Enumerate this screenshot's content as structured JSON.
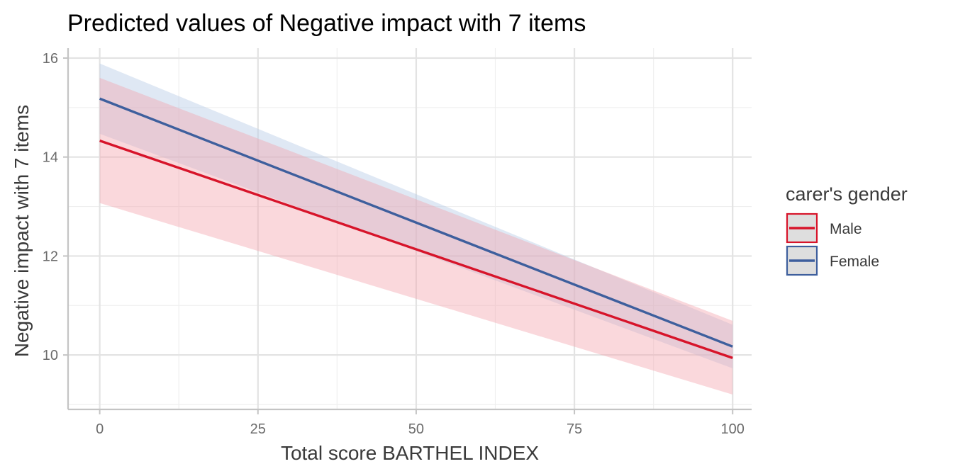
{
  "chart_data": {
    "type": "line",
    "title": "Predicted values of Negative impact with 7 items",
    "xlabel": "Total score BARTHEL INDEX",
    "ylabel": "Negative impact with 7 items",
    "xlim": [
      -5,
      103
    ],
    "ylim": [
      8.9,
      16.2
    ],
    "x_ticks": [
      0,
      25,
      50,
      75,
      100
    ],
    "x_tick_labels": [
      "0",
      "25",
      "50",
      "75",
      "100"
    ],
    "y_ticks": [
      10,
      12,
      14,
      16
    ],
    "y_tick_labels": [
      "10",
      "12",
      "14",
      "16"
    ],
    "grid": true,
    "legend": {
      "title": "carer's gender",
      "position": "right"
    },
    "series": [
      {
        "name": "Male",
        "color": "#d7142a",
        "band_color": "#f2a2ac",
        "x": [
          0,
          100
        ],
        "y": [
          14.33,
          9.94
        ],
        "lower": [
          13.07,
          9.2
        ],
        "upper": [
          15.6,
          10.69
        ]
      },
      {
        "name": "Female",
        "color": "#3e5f9d",
        "band_color": "#b9cde6",
        "x": [
          0,
          100
        ],
        "y": [
          15.18,
          10.17
        ],
        "lower": [
          14.47,
          9.73
        ],
        "upper": [
          15.89,
          10.61
        ]
      }
    ]
  }
}
